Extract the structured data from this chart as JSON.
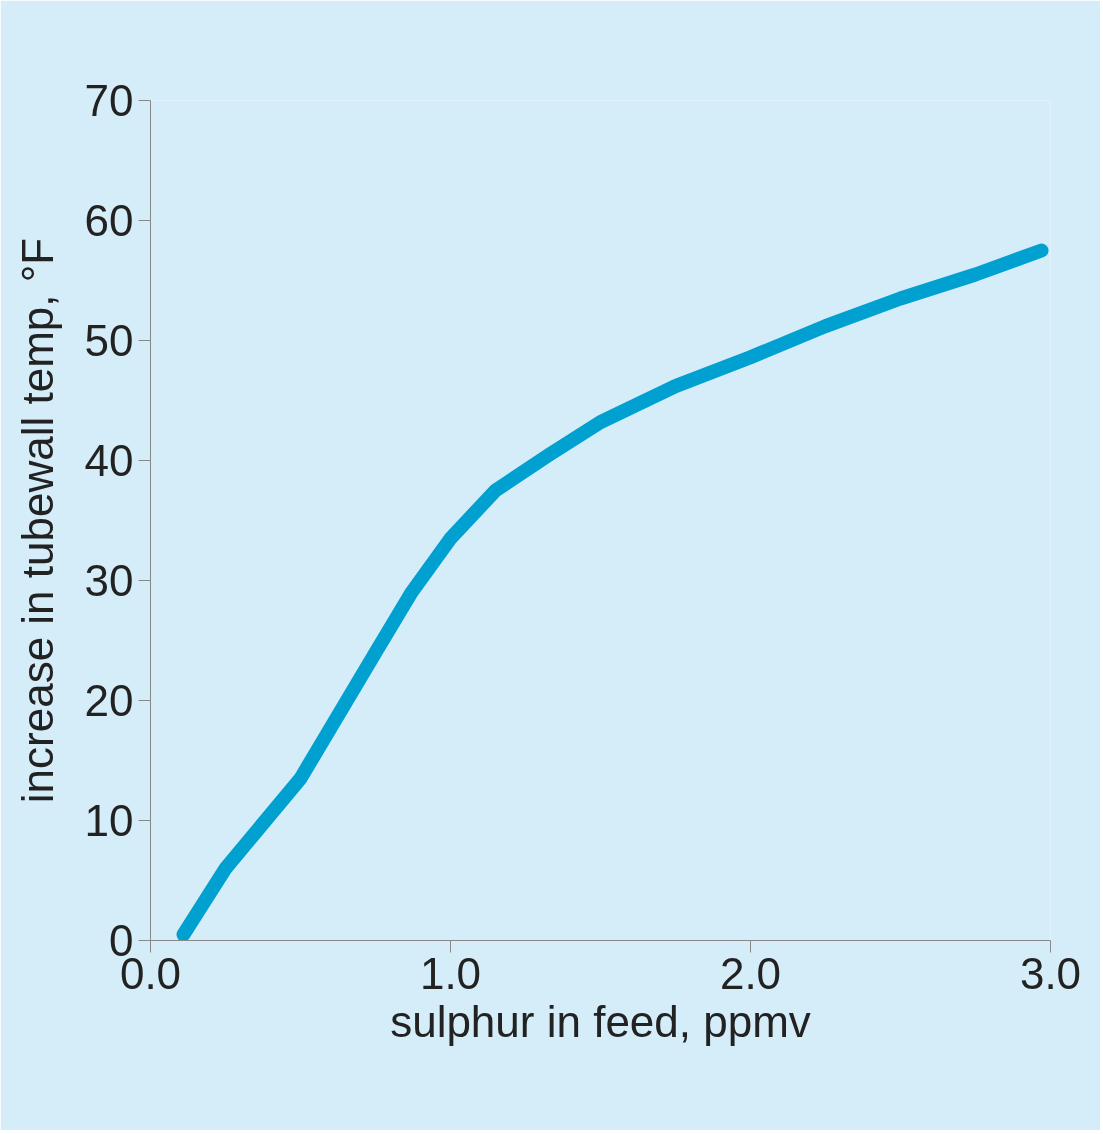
{
  "chart_data": {
    "type": "line",
    "xlabel": "sulphur in feed, ppmv",
    "ylabel": "increase in tubewall temp, °F",
    "x": [
      0.11,
      0.25,
      0.5,
      0.75,
      0.87,
      1.0,
      1.15,
      1.33,
      1.5,
      1.75,
      2.0,
      2.25,
      2.5,
      2.75,
      2.97
    ],
    "series": [
      {
        "color": "#00a0d1",
        "values": [
          0.5,
          6,
          13.5,
          24,
          29,
          33.5,
          37.5,
          40.5,
          43.2,
          46.2,
          48.6,
          51.2,
          53.5,
          55.5,
          57.5
        ]
      }
    ],
    "xlim": [
      0,
      3
    ],
    "ylim": [
      0,
      70
    ],
    "xticks": [
      {
        "value": 0,
        "label": "0.0"
      },
      {
        "value": 1,
        "label": "1.0"
      },
      {
        "value": 2,
        "label": "2.0"
      },
      {
        "value": 3,
        "label": "3.0"
      }
    ],
    "yticks": [
      0,
      10,
      20,
      30,
      40,
      50,
      60,
      70
    ],
    "grid": false,
    "marker": "none",
    "line_style": "solid"
  }
}
